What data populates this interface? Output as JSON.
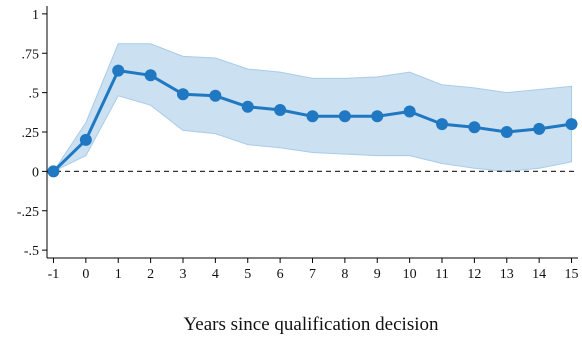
{
  "chart_data": {
    "type": "line",
    "title": "",
    "xlabel": "Years since qualification decision",
    "ylabel": "",
    "x": [
      -1,
      0,
      1,
      2,
      3,
      4,
      5,
      6,
      7,
      8,
      9,
      10,
      11,
      12,
      13,
      14,
      15
    ],
    "xticks": [
      "-1",
      "0",
      "1",
      "2",
      "3",
      "4",
      "5",
      "6",
      "7",
      "8",
      "9",
      "10",
      "11",
      "12",
      "13",
      "14",
      "15"
    ],
    "yticks": [
      {
        "value": 1,
        "label": "1"
      },
      {
        "value": 0.75,
        "label": ".75"
      },
      {
        "value": 0.5,
        "label": ".5"
      },
      {
        "value": 0.25,
        "label": ".25"
      },
      {
        "value": 0,
        "label": "0"
      },
      {
        "value": -0.25,
        "label": "-.25"
      },
      {
        "value": -0.5,
        "label": "-.5"
      }
    ],
    "ylim": [
      -0.55,
      1.05
    ],
    "xlim": [
      -1.2,
      15.2
    ],
    "series": [
      {
        "values": [
          0.0,
          0.2,
          0.64,
          0.61,
          0.49,
          0.48,
          0.41,
          0.39,
          0.35,
          0.35,
          0.35,
          0.38,
          0.3,
          0.28,
          0.25,
          0.27,
          0.3
        ],
        "ci_low": [
          0.0,
          0.1,
          0.48,
          0.42,
          0.26,
          0.24,
          0.17,
          0.15,
          0.12,
          0.11,
          0.1,
          0.1,
          0.05,
          0.02,
          0.0,
          0.02,
          0.06
        ],
        "ci_high": [
          0.0,
          0.31,
          0.81,
          0.81,
          0.73,
          0.72,
          0.65,
          0.63,
          0.59,
          0.59,
          0.6,
          0.63,
          0.55,
          0.53,
          0.5,
          0.52,
          0.54
        ]
      }
    ],
    "reference_line": {
      "y": 0,
      "style": "dashed"
    },
    "grid": false,
    "legend": "none",
    "colors": {
      "line": "#1f78c1",
      "marker": "#1f78c1",
      "ci_fill": "#a9cce8",
      "axis": "#000000"
    }
  }
}
